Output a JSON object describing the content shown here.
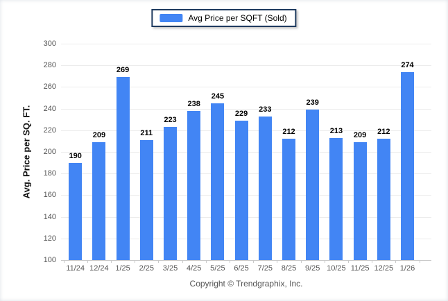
{
  "legend": {
    "label": "Avg Price per SQFT (Sold)",
    "swatch_color": "#4285f4"
  },
  "footer": {
    "copyright": "Copyright © Trendgraphix, Inc."
  },
  "chart_data": {
    "type": "bar",
    "title": "",
    "series_name": "Avg Price per SQFT (Sold)",
    "categories": [
      "11/24",
      "12/24",
      "1/25",
      "2/25",
      "3/25",
      "4/25",
      "5/25",
      "6/25",
      "7/25",
      "8/25",
      "9/25",
      "10/25",
      "11/25",
      "12/25",
      "1/26"
    ],
    "values": [
      190,
      209,
      269,
      211,
      223,
      238,
      245,
      229,
      233,
      212,
      239,
      213,
      209,
      212,
      274
    ],
    "xlabel": "",
    "ylabel": "Avg. Price per SQ. FT.",
    "ylim": [
      100,
      300
    ],
    "ytick_step": 20,
    "yticks": [
      100,
      120,
      140,
      160,
      180,
      200,
      220,
      240,
      260,
      280,
      300
    ],
    "grid": true,
    "value_labels": true,
    "legend_position": "top-center",
    "bar_color": "#4285f4"
  }
}
